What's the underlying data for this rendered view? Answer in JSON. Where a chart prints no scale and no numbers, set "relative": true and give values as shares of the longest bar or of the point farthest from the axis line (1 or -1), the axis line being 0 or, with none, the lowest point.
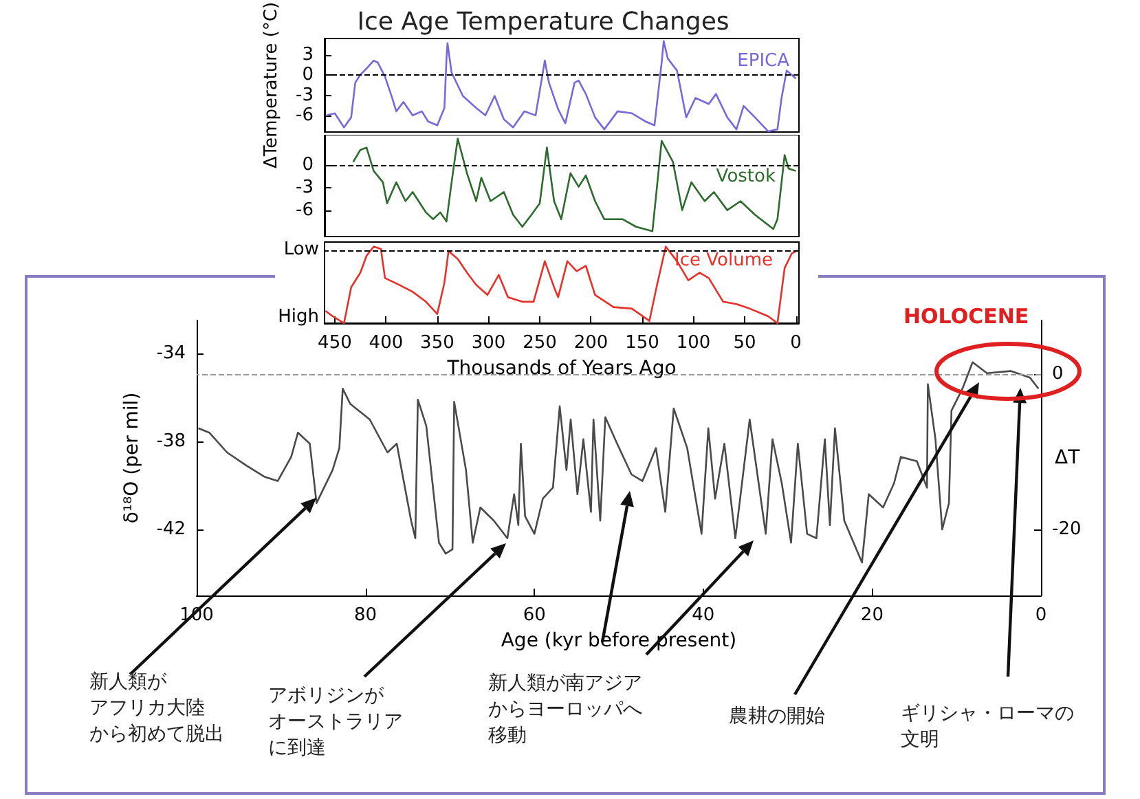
{
  "chart_data": [
    {
      "type": "line",
      "title": "Ice Age Temperature Changes",
      "ylabel": "ΔTemperature (°C)",
      "xlim": [
        460,
        -3
      ],
      "ylim": [
        -8.5,
        5.5
      ],
      "yticks": [
        3,
        0,
        -3,
        -6
      ],
      "tick_labels": "y",
      "ref_lines": [
        {
          "axis": "y",
          "value": 0,
          "color": "#000000",
          "line_style": "dashed"
        }
      ],
      "series": [
        {
          "name": "EPICA",
          "color": "#7b68d8",
          "x": [
            458,
            450,
            441,
            434,
            430,
            425,
            419,
            412,
            408,
            401,
            394,
            390,
            383,
            374,
            365,
            359,
            350,
            343,
            341,
            340,
            336,
            325,
            312,
            303,
            294,
            285,
            276,
            265,
            254,
            245,
            241,
            232,
            225,
            216,
            212,
            205,
            196,
            187,
            174,
            160,
            147,
            138,
            131,
            129,
            125,
            116,
            107,
            98,
            85,
            78,
            67,
            58,
            51,
            40,
            27,
            18,
            14,
            9,
            0
          ],
          "values": [
            -6.0,
            -5.7,
            -7.8,
            -6.3,
            -1.1,
            0.1,
            1.0,
            2.2,
            1.9,
            -0.2,
            -3.4,
            -5.4,
            -4.0,
            -6.0,
            -5.4,
            -6.9,
            -7.5,
            -4.9,
            2.5,
            4.8,
            0.4,
            -3.1,
            -4.9,
            -6.0,
            -3.1,
            -6.6,
            -7.8,
            -5.4,
            -6.0,
            2.2,
            -1.1,
            -5.1,
            -7.2,
            -1.1,
            -0.8,
            -2.8,
            -6.3,
            -8.1,
            -5.4,
            -5.7,
            -6.9,
            -7.5,
            1.9,
            5.1,
            2.5,
            0.7,
            -6.3,
            -3.4,
            -4.3,
            -2.8,
            -6.3,
            -8.1,
            -4.6,
            -6.3,
            -8.4,
            -8.1,
            -3.4,
            0.7,
            -0.5
          ]
        }
      ]
    },
    {
      "type": "line",
      "xlim": [
        460,
        -3
      ],
      "ylim": [
        -9.5,
        4
      ],
      "yticks": [
        0,
        -3,
        -6
      ],
      "tick_labels": "y",
      "ref_lines": [
        {
          "axis": "y",
          "value": 0,
          "color": "#000000",
          "line_style": "dashed"
        }
      ],
      "series": [
        {
          "name": "Vostok",
          "color": "#2e6b2e",
          "x": [
            432,
            425,
            419,
            412,
            403,
            399,
            390,
            381,
            374,
            361,
            354,
            347,
            341,
            336,
            330,
            321,
            312,
            307,
            298,
            285,
            276,
            267,
            258,
            250,
            243,
            236,
            229,
            220,
            212,
            205,
            196,
            187,
            169,
            156,
            140,
            131,
            120,
            111,
            102,
            89,
            80,
            67,
            54,
            40,
            22,
            18,
            11,
            7,
            0
          ],
          "values": [
            0.4,
            2.0,
            2.3,
            -0.8,
            -2.3,
            -5.1,
            -2.3,
            -4.8,
            -3.6,
            -6.3,
            -7.2,
            -6.3,
            -7.5,
            -2.3,
            3.5,
            -1.1,
            -4.8,
            -1.7,
            -4.8,
            -3.6,
            -6.6,
            -8.2,
            -6.6,
            -5.1,
            2.3,
            -4.8,
            -7.2,
            -1.1,
            -2.9,
            -1.4,
            -4.8,
            -7.2,
            -7.2,
            -8.2,
            -8.8,
            3.2,
            0.4,
            -6.0,
            -2.3,
            -4.8,
            -3.6,
            -6.0,
            -4.8,
            -6.6,
            -8.5,
            -7.2,
            1.3,
            -0.5,
            -0.8
          ]
        }
      ]
    },
    {
      "type": "line",
      "relative": true,
      "xlabel": "Thousands of Years Ago",
      "xlim": [
        460,
        -3
      ],
      "xticks": [
        450,
        400,
        350,
        300,
        250,
        200,
        150,
        100,
        50,
        0
      ],
      "ref_lines": [
        {
          "axis": "y",
          "value": 0.95,
          "color": "#000000",
          "line_style": "dashed"
        }
      ],
      "annotations": [
        "Low",
        "High"
      ],
      "series": [
        {
          "name": "Ice Volume",
          "color": "#e8302a",
          "x": [
            459,
            452,
            441,
            434,
            425,
            419,
            412,
            405,
            401,
            387,
            374,
            361,
            350,
            343,
            339,
            330,
            321,
            312,
            301,
            290,
            281,
            267,
            256,
            245,
            236,
            232,
            223,
            214,
            205,
            196,
            178,
            160,
            143,
            136,
            127,
            116,
            105,
            94,
            85,
            71,
            58,
            45,
            27,
            18,
            11,
            4,
            0
          ],
          "values": [
            0.16,
            0.09,
            0,
            0.47,
            0.66,
            0.88,
            1,
            0.97,
            0.59,
            0.5,
            0.41,
            0.28,
            0.12,
            0.53,
            0.94,
            0.84,
            0.66,
            0.5,
            0.37,
            0.63,
            0.34,
            0.28,
            0.28,
            0.81,
            0.47,
            0.34,
            0.81,
            0.68,
            0.75,
            0.37,
            0.21,
            0.19,
            0.03,
            0.47,
            1,
            0.81,
            0.56,
            0.66,
            0.59,
            0.28,
            0.25,
            0.19,
            0.09,
            0,
            0.72,
            0.91,
            0.94
          ]
        }
      ]
    },
    {
      "type": "line",
      "xlabel": "Age (kyr before present)",
      "ylabel": "δ¹⁸O (per mil)",
      "y2label": "ΔT",
      "xlim": [
        100,
        0
      ],
      "xticks": [
        100,
        80,
        60,
        40,
        20,
        0
      ],
      "ylim": [
        -45,
        -32.5
      ],
      "yticks": [
        -34,
        -38,
        -42
      ],
      "y2lim": [
        -28.5,
        6.9
      ],
      "y2ticks": [
        0,
        -20
      ],
      "ref_lines": [
        {
          "axis": "y2",
          "value": 0,
          "color": "#999999",
          "line_style": "dashed"
        }
      ],
      "x": [
        99.8,
        98.5,
        96.4,
        94.1,
        92,
        90.4,
        88.8,
        88,
        86.6,
        85.8,
        83.9,
        83.1,
        82.7,
        81.8,
        79.5,
        77.4,
        76.3,
        74.6,
        74.1,
        73.8,
        72.8,
        71.3,
        70.5,
        69.7,
        69.5,
        68.1,
        67.3,
        66.4,
        64.8,
        63.2,
        62.4,
        61.9,
        61.6,
        61.1,
        60,
        59,
        57.8,
        57,
        56.2,
        55.7,
        54.9,
        54.2,
        53.3,
        53,
        52.2,
        51.6,
        50.2,
        48.5,
        47.2,
        45.6,
        44.5,
        43.5,
        41.9,
        40.2,
        39.4,
        38.6,
        37.5,
        36.2,
        34.5,
        32.6,
        31.8,
        30.7,
        29.6,
        28.8,
        27.7,
        26.6,
        25.6,
        25,
        24.4,
        23.3,
        21.2,
        20.4,
        18.7,
        17.4,
        16.6,
        14.7,
        13.5,
        13.4,
        12.5,
        11.7,
        10.9,
        10.6,
        9.3,
        8.1,
        6.4,
        3.6,
        1.3,
        0.3
      ],
      "series": [
        {
          "color": "#4a4a4a",
          "values": [
            -37.4,
            -37.6,
            -38.5,
            -39.1,
            -39.6,
            -39.8,
            -38.7,
            -37.6,
            -38.1,
            -40.8,
            -39.3,
            -38.3,
            -35.6,
            -36.3,
            -37,
            -38.5,
            -38.1,
            -41.6,
            -42.4,
            -36.1,
            -37.3,
            -42.6,
            -43.1,
            -42.9,
            -36.2,
            -39.3,
            -42.6,
            -41,
            -41.6,
            -42.4,
            -40.4,
            -41.8,
            -38.1,
            -41.4,
            -42.2,
            -40.6,
            -40.1,
            -36.4,
            -39.3,
            -37,
            -40.4,
            -37.9,
            -41.2,
            -37,
            -41.6,
            -36.9,
            -38.1,
            -39.5,
            -39.8,
            -38.3,
            -41.2,
            -36.5,
            -38.3,
            -42.2,
            -37.4,
            -40.6,
            -38.1,
            -42.4,
            -37,
            -42.2,
            -37.9,
            -39.9,
            -42.6,
            -38.1,
            -42.2,
            -42.4,
            -37.9,
            -41.8,
            -37.4,
            -41.6,
            -43.5,
            -40.4,
            -41,
            -39.9,
            -38.7,
            -38.9,
            -40.1,
            -35.4,
            -37.9,
            -42,
            -40.8,
            -36.6,
            -35.6,
            -34.4,
            -34.9,
            -34.8,
            -35.1,
            -35.6
          ]
        }
      ],
      "annotations": [
        "HOLOCENE",
        "新人類がアフリカ大陸から初めて脱出",
        "アボリジンがオーストラリアに到達",
        "新人類が南アジアからヨーロッパへ移動",
        "農耕の開始",
        "ギリシャ・ローマの文明"
      ]
    }
  ]
}
